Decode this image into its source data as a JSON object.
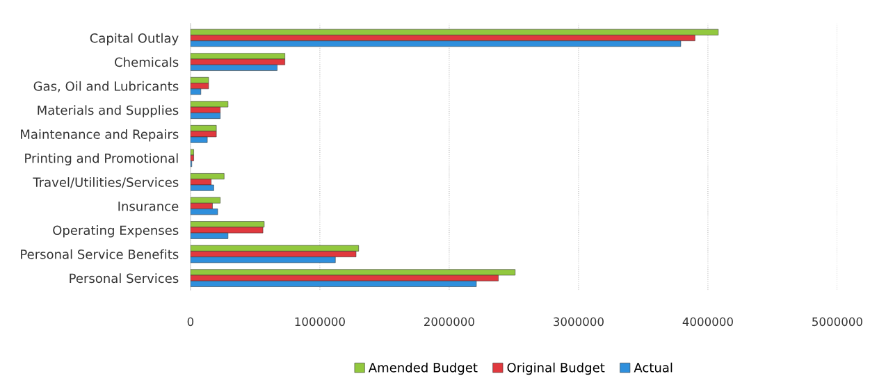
{
  "chart_data": {
    "type": "bar",
    "orientation": "horizontal",
    "categories": [
      "Capital Outlay",
      "Chemicals",
      "Gas, Oil and Lubricants",
      "Materials and Supplies",
      "Maintenance and Repairs",
      "Printing and Promotional",
      "Travel/Utilities/Services",
      "Insurance",
      "Operating Expenses",
      "Personal Service Benefits",
      "Personal Services"
    ],
    "series": [
      {
        "name": "Amended Budget",
        "color": "#92c83e",
        "values": [
          4080000,
          730000,
          140000,
          290000,
          200000,
          25000,
          260000,
          230000,
          570000,
          1300000,
          2510000
        ]
      },
      {
        "name": "Original Budget",
        "color": "#e0393e",
        "values": [
          3900000,
          730000,
          140000,
          230000,
          200000,
          25000,
          160000,
          170000,
          560000,
          1280000,
          2380000
        ]
      },
      {
        "name": "Actual",
        "color": "#2f8fdc",
        "values": [
          3790000,
          670000,
          80000,
          230000,
          130000,
          10000,
          180000,
          210000,
          290000,
          1120000,
          2210000
        ]
      }
    ],
    "xlim": [
      0,
      5000000
    ],
    "xticks": [
      0,
      1000000,
      2000000,
      3000000,
      4000000,
      5000000
    ],
    "grid": "x",
    "legend": "bottom"
  }
}
